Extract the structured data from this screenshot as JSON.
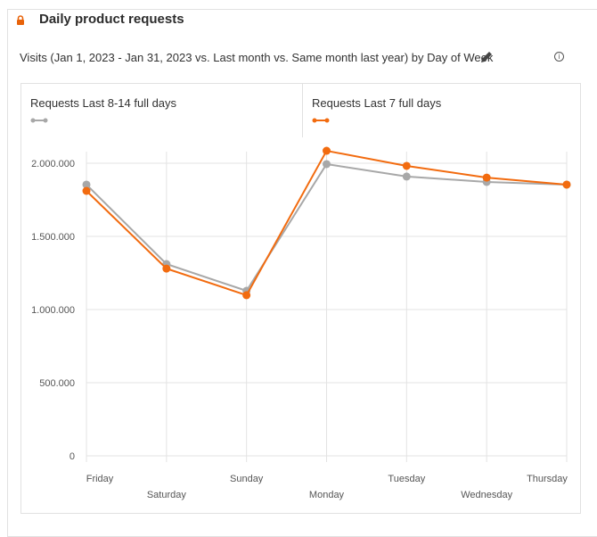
{
  "header": {
    "title": "Daily product requests",
    "lock_icon": "lock-icon",
    "lock_color": "#e8630a"
  },
  "subtitle": "Visits (Jan 1, 2023 - Jan 31, 2023 vs. Last month vs. Same month last year) by Day of Week",
  "icons": {
    "edit": "pencil-icon",
    "info": "info-icon"
  },
  "chart_data": {
    "type": "line",
    "categories": [
      "Friday",
      "Saturday",
      "Sunday",
      "Monday",
      "Tuesday",
      "Wednesday",
      "Thursday"
    ],
    "series": [
      {
        "name": "Requests Last 8-14 full days",
        "color": "#a8a8a8",
        "values": [
          1854000,
          1311000,
          1128000,
          1994000,
          1909000,
          1872000,
          1854000
        ]
      },
      {
        "name": "Requests Last 7 full days",
        "color": "#f26b0f",
        "values": [
          1811000,
          1280000,
          1098000,
          2085000,
          1982000,
          1902000,
          1854000
        ]
      }
    ],
    "yticks": [
      "0",
      "500.000",
      "1.000.000",
      "1.500.000",
      "2.000.000"
    ],
    "ytick_values": [
      0,
      500000,
      1000000,
      1500000,
      2000000
    ],
    "ylim": [
      0,
      2000000
    ],
    "grid": true,
    "legend": "top"
  }
}
